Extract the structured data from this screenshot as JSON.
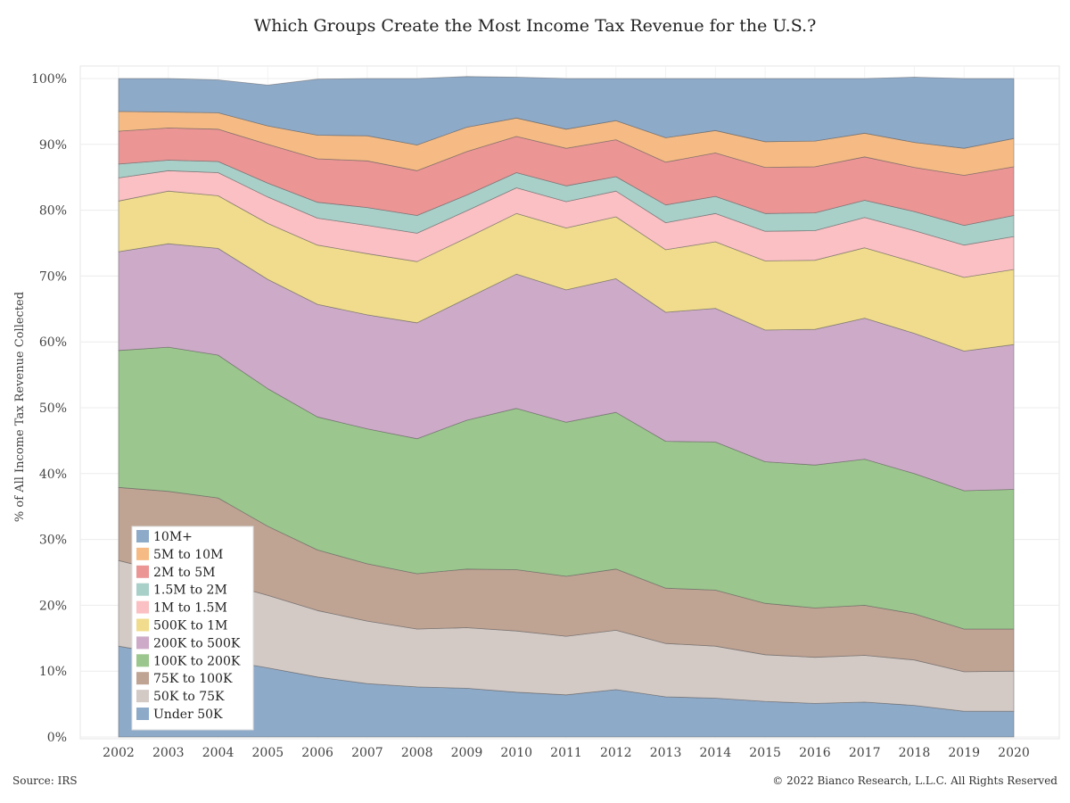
{
  "header": {
    "title": "Which Groups Create the Most Income Tax Revenue for the U.S.?"
  },
  "footer": {
    "source": "Source: IRS",
    "copyright": "© 2022 Bianco Research, L.L.C. All Rights Reserved"
  },
  "chart_data": {
    "type": "area",
    "stacked": true,
    "title": "Which Groups Create the Most Income Tax Revenue for the U.S.?",
    "ylabel": "% of All Income Tax Revenue Collected",
    "xlabel": "",
    "ylim": [
      0,
      100
    ],
    "grid": true,
    "legend_position": "bottom-left",
    "x": [
      2002,
      2003,
      2004,
      2005,
      2006,
      2007,
      2008,
      2009,
      2010,
      2011,
      2012,
      2013,
      2014,
      2015,
      2016,
      2017,
      2018,
      2019,
      2020
    ],
    "x_tick_labels": [
      "2002",
      "2003",
      "2004",
      "2005",
      "2006",
      "2007",
      "2008",
      "2009",
      "2010",
      "2011",
      "2012",
      "2013",
      "2014",
      "2015",
      "2016",
      "2017",
      "2018",
      "2019",
      "2020"
    ],
    "y_tick_labels": [
      "0%",
      "10%",
      "20%",
      "30%",
      "40%",
      "50%",
      "60%",
      "70%",
      "80%",
      "90%",
      "100%"
    ],
    "series": [
      {
        "name": "Under 50K",
        "color": "#8eaac9",
        "values": [
          13.8,
          12.5,
          11.8,
          10.5,
          9.1,
          8.1,
          7.6,
          7.4,
          6.8,
          6.4,
          7.2,
          6.1,
          5.9,
          5.4,
          5.1,
          5.3,
          4.8,
          3.9,
          3.9
        ]
      },
      {
        "name": "50K to 75K",
        "color": "#d3cac6",
        "values": [
          13.0,
          12.4,
          11.8,
          11.0,
          10.1,
          9.5,
          8.8,
          9.2,
          9.3,
          8.9,
          9.0,
          8.1,
          7.9,
          7.1,
          7.0,
          7.1,
          6.9,
          6.0,
          6.1
        ]
      },
      {
        "name": "75K to 100K",
        "color": "#bfa393",
        "values": [
          11.1,
          12.4,
          12.7,
          10.5,
          9.2,
          8.7,
          8.4,
          8.9,
          9.3,
          9.1,
          9.3,
          8.4,
          8.5,
          7.8,
          7.5,
          7.6,
          7.0,
          6.5,
          6.4
        ]
      },
      {
        "name": "100K to 200K",
        "color": "#9bc68d",
        "values": [
          20.8,
          21.9,
          21.7,
          20.9,
          20.2,
          20.5,
          20.5,
          22.6,
          24.5,
          23.4,
          23.8,
          22.3,
          22.5,
          21.5,
          21.7,
          22.2,
          21.3,
          21.0,
          21.2
        ]
      },
      {
        "name": "200K to 500K",
        "color": "#cdabc8",
        "values": [
          15.0,
          15.7,
          16.2,
          16.6,
          17.1,
          17.3,
          17.6,
          18.5,
          20.4,
          20.1,
          20.3,
          19.6,
          20.3,
          20.0,
          20.6,
          21.4,
          21.3,
          21.2,
          22.0
        ]
      },
      {
        "name": "500K to 1M",
        "color": "#f0dc8c",
        "values": [
          7.7,
          8.0,
          8.0,
          8.5,
          9.0,
          9.3,
          9.3,
          9.2,
          9.2,
          9.4,
          9.4,
          9.5,
          10.1,
          10.5,
          10.5,
          10.7,
          10.8,
          11.2,
          11.4
        ]
      },
      {
        "name": "1M to 1.5M",
        "color": "#fbc0c3",
        "values": [
          3.5,
          3.1,
          3.5,
          4.0,
          4.1,
          4.3,
          4.3,
          4.1,
          3.9,
          4.0,
          3.9,
          4.1,
          4.3,
          4.5,
          4.5,
          4.6,
          4.8,
          4.9,
          5.0
        ]
      },
      {
        "name": "1.5M to 2M",
        "color": "#a9cfc9",
        "values": [
          2.1,
          1.6,
          1.7,
          2.1,
          2.4,
          2.7,
          2.7,
          2.4,
          2.3,
          2.4,
          2.2,
          2.7,
          2.6,
          2.7,
          2.7,
          2.6,
          2.9,
          3.0,
          3.2
        ]
      },
      {
        "name": "2M to 5M",
        "color": "#eb9595",
        "values": [
          5.0,
          4.9,
          4.9,
          5.9,
          6.6,
          7.1,
          6.8,
          6.6,
          5.5,
          5.7,
          5.6,
          6.5,
          6.6,
          7.0,
          7.0,
          6.6,
          6.7,
          7.6,
          7.4
        ]
      },
      {
        "name": "5M to 10M",
        "color": "#f6bb84",
        "values": [
          3.0,
          2.4,
          2.5,
          2.8,
          3.6,
          3.8,
          3.9,
          3.7,
          2.8,
          2.9,
          2.9,
          3.7,
          3.4,
          3.9,
          3.9,
          3.6,
          3.8,
          4.1,
          4.3
        ]
      },
      {
        "name": "10M+",
        "color": "#8eaac9",
        "values": [
          5.0,
          5.1,
          5.0,
          6.2,
          8.5,
          8.7,
          10.1,
          7.7,
          6.2,
          7.7,
          6.4,
          9.0,
          7.9,
          9.6,
          9.5,
          8.3,
          9.9,
          10.6,
          9.1
        ]
      }
    ]
  }
}
